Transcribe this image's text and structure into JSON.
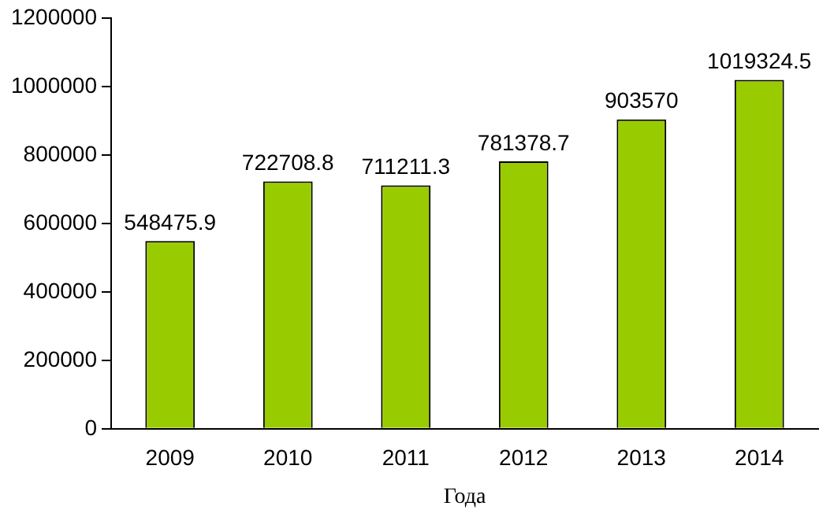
{
  "chart_data": {
    "type": "bar",
    "xlabel": "Года",
    "categories": [
      "2009",
      "2010",
      "2011",
      "2012",
      "2013",
      "2014"
    ],
    "values": [
      548475.9,
      722708.8,
      711211.3,
      781378.7,
      903570,
      1019324.5
    ],
    "color": "#99cc00",
    "ylim": [
      0,
      1200000
    ],
    "yticks": [
      0,
      200000,
      400000,
      600000,
      800000,
      1000000,
      1200000
    ],
    "grid": false,
    "legend": false,
    "data_labels": true
  }
}
